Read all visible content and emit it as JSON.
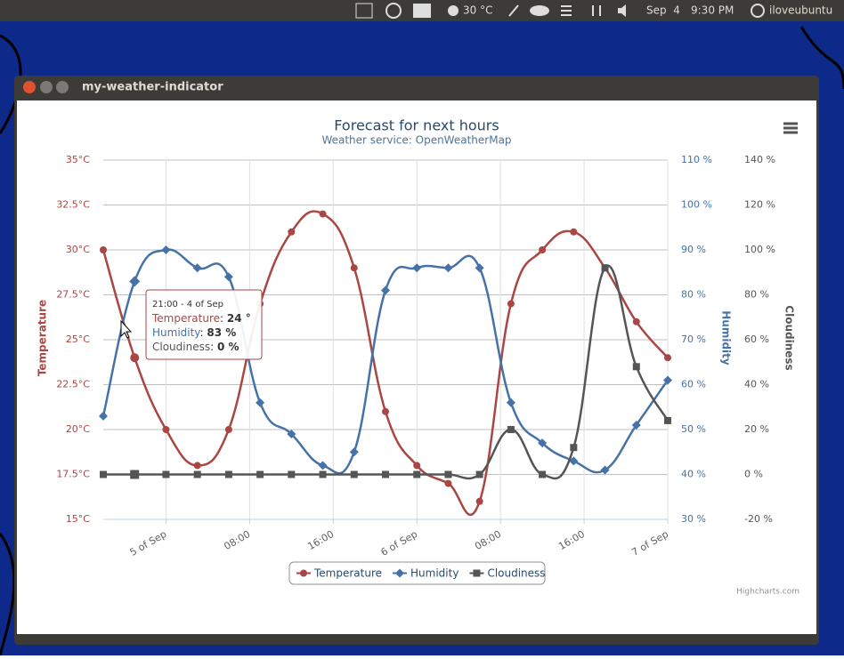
{
  "panel": {
    "temperature": "30 °C",
    "date": "Sep  4",
    "time": "9:30 PM",
    "user": "iloveubuntu"
  },
  "window": {
    "title": "my-weather-indicator"
  },
  "chart_data": {
    "type": "line",
    "title": "Forecast for next hours",
    "subtitle": "Weather service: OpenWeatherMap",
    "credits": "Highcharts.com",
    "x": [
      -6,
      -3,
      0,
      3,
      6,
      9,
      12,
      15,
      18,
      21,
      24,
      27,
      30,
      33,
      36,
      39,
      42,
      45,
      48
    ],
    "xlim": [
      -6,
      48
    ],
    "xticks": [
      {
        "value": 0,
        "label": "5 of Sep"
      },
      {
        "value": 8,
        "label": "08:00"
      },
      {
        "value": 16,
        "label": "16:00"
      },
      {
        "value": 24,
        "label": "6 of Sep"
      },
      {
        "value": 32,
        "label": "08:00"
      },
      {
        "value": 40,
        "label": "16:00"
      },
      {
        "value": 48,
        "label": "7 of Sep"
      }
    ],
    "ylabel": "Temperature",
    "ylim": [
      15,
      35
    ],
    "yticks": [
      {
        "value": 15,
        "label": "15°C"
      },
      {
        "value": 17.5,
        "label": "17.5°C"
      },
      {
        "value": 20,
        "label": "20°C"
      },
      {
        "value": 22.5,
        "label": "22.5°C"
      },
      {
        "value": 25,
        "label": "25°C"
      },
      {
        "value": 27.5,
        "label": "27.5°C"
      },
      {
        "value": 30,
        "label": "30°C"
      },
      {
        "value": 32.5,
        "label": "32.5°C"
      },
      {
        "value": 35,
        "label": "35°C"
      }
    ],
    "y2label": "Humidity",
    "y2lim": [
      30,
      110
    ],
    "y2ticks": [
      {
        "value": 30,
        "label": "30 %"
      },
      {
        "value": 40,
        "label": "40 %"
      },
      {
        "value": 50,
        "label": "50 %"
      },
      {
        "value": 60,
        "label": "60 %"
      },
      {
        "value": 70,
        "label": "70 %"
      },
      {
        "value": 80,
        "label": "80 %"
      },
      {
        "value": 90,
        "label": "90 %"
      },
      {
        "value": 100,
        "label": "100 %"
      },
      {
        "value": 110,
        "label": "110 %"
      }
    ],
    "y3label": "Cloudiness",
    "y3lim": [
      -20,
      140
    ],
    "y3ticks": [
      {
        "value": -20,
        "label": "-20 %"
      },
      {
        "value": 0,
        "label": "0 %"
      },
      {
        "value": 20,
        "label": "20 %"
      },
      {
        "value": 40,
        "label": "40 %"
      },
      {
        "value": 60,
        "label": "60 %"
      },
      {
        "value": 80,
        "label": "80 %"
      },
      {
        "value": 100,
        "label": "100 %"
      },
      {
        "value": 120,
        "label": "120 %"
      },
      {
        "value": 140,
        "label": "140 %"
      }
    ],
    "grid": true,
    "legend": "bottom",
    "series": [
      {
        "name": "Temperature",
        "color": "#aa4643",
        "marker": "circle",
        "values": [
          30,
          24,
          20,
          18,
          20,
          27,
          31,
          32,
          29,
          21,
          18,
          17,
          16,
          27,
          30,
          31,
          29,
          26,
          24
        ]
      },
      {
        "name": "Humidity",
        "color": "#4572a7",
        "marker": "diamond",
        "axis": "y2",
        "values": [
          53,
          83,
          90,
          86,
          84,
          56,
          49,
          42,
          45,
          81,
          86,
          86,
          86,
          56,
          47,
          43,
          41,
          51,
          61
        ]
      },
      {
        "name": "Cloudiness",
        "color": "#555555",
        "marker": "square",
        "axis": "y3",
        "values": [
          0,
          0,
          0,
          0,
          0,
          0,
          0,
          0,
          0,
          0,
          0,
          0,
          0,
          20,
          0,
          12,
          92,
          48,
          24
        ]
      }
    ],
    "tooltip": {
      "header": "21:00 - 4 of Sep",
      "rows": [
        [
          "Temperature",
          "24 °"
        ],
        [
          "Humidity",
          "83 %"
        ],
        [
          "Cloudiness",
          "0 %"
        ]
      ],
      "separator": ": "
    }
  }
}
